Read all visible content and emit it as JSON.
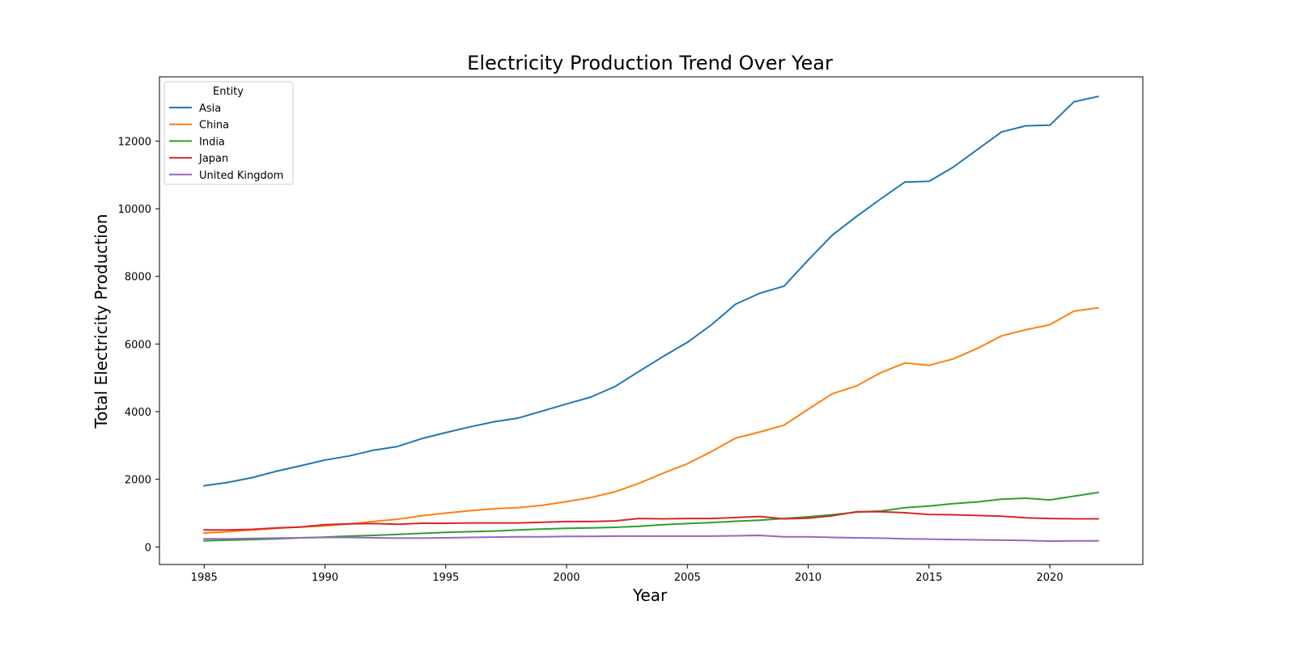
{
  "chart_data": {
    "type": "line",
    "title": "Electricity Production Trend Over Year",
    "xlabel": "Year",
    "ylabel": "Total Electricity Production",
    "xlim": [
      1983.15,
      2023.85
    ],
    "ylim": [
      -520,
      13900
    ],
    "xticks": [
      1985,
      1990,
      1995,
      2000,
      2005,
      2010,
      2015,
      2020
    ],
    "yticks": [
      0,
      2000,
      4000,
      6000,
      8000,
      10000,
      12000
    ],
    "grid": false,
    "legend": {
      "title": "Entity",
      "position": "top-left"
    },
    "x": [
      1985,
      1986,
      1987,
      1988,
      1989,
      1990,
      1991,
      1992,
      1993,
      1994,
      1995,
      1996,
      1997,
      1998,
      1999,
      2000,
      2001,
      2002,
      2003,
      2004,
      2005,
      2006,
      2007,
      2008,
      2009,
      2010,
      2011,
      2012,
      2013,
      2014,
      2015,
      2016,
      2017,
      2018,
      2019,
      2020,
      2021,
      2022
    ],
    "series": [
      {
        "name": "Asia",
        "color": "#1f77b4",
        "values": [
          1810,
          1910,
          2050,
          2240,
          2400,
          2570,
          2690,
          2860,
          2970,
          3200,
          3380,
          3550,
          3700,
          3810,
          4020,
          4230,
          4430,
          4740,
          5190,
          5630,
          6050,
          6570,
          7180,
          7500,
          7710,
          8480,
          9220,
          9770,
          10290,
          10790,
          10810,
          11230,
          11750,
          12270,
          12450,
          12470,
          13160,
          13320
        ]
      },
      {
        "name": "China",
        "color": "#ff7f0e",
        "values": [
          410,
          450,
          500,
          550,
          590,
          620,
          680,
          750,
          820,
          920,
          1000,
          1070,
          1130,
          1160,
          1230,
          1340,
          1460,
          1630,
          1880,
          2180,
          2460,
          2820,
          3220,
          3400,
          3600,
          4070,
          4530,
          4760,
          5150,
          5440,
          5370,
          5560,
          5870,
          6240,
          6420,
          6570,
          6970,
          7070
        ]
      },
      {
        "name": "India",
        "color": "#2ca02c",
        "values": [
          180,
          200,
          220,
          240,
          270,
          290,
          320,
          340,
          370,
          400,
          430,
          450,
          470,
          500,
          530,
          550,
          560,
          580,
          610,
          660,
          690,
          720,
          760,
          790,
          840,
          890,
          950,
          1030,
          1060,
          1160,
          1210,
          1280,
          1330,
          1410,
          1440,
          1390,
          1500,
          1610
        ]
      },
      {
        "name": "Japan",
        "color": "#d62728",
        "values": [
          500,
          500,
          520,
          560,
          590,
          660,
          680,
          690,
          670,
          700,
          700,
          710,
          710,
          710,
          730,
          750,
          750,
          770,
          840,
          830,
          840,
          840,
          870,
          900,
          830,
          850,
          920,
          1040,
          1040,
          1010,
          960,
          950,
          930,
          910,
          860,
          840,
          830,
          830
        ]
      },
      {
        "name": "United Kingdom",
        "color": "#9467bd",
        "values": [
          240,
          240,
          250,
          260,
          270,
          280,
          280,
          270,
          260,
          260,
          270,
          280,
          290,
          300,
          300,
          310,
          310,
          320,
          320,
          320,
          320,
          320,
          330,
          340,
          300,
          300,
          280,
          270,
          260,
          240,
          230,
          220,
          210,
          200,
          190,
          170,
          180,
          180
        ]
      }
    ]
  }
}
